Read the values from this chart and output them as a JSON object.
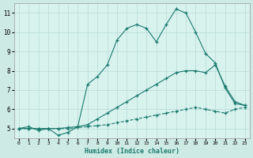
{
  "xlabel": "Humidex (Indice chaleur)",
  "background_color": "#ceeae4",
  "plot_bg_color": "#d8f2ee",
  "line_color": "#1a7a6e",
  "grid_color": "#b8dcd8",
  "xlim": [
    -0.5,
    23.5
  ],
  "ylim": [
    4.5,
    11.5
  ],
  "yticks": [
    5,
    6,
    7,
    8,
    9,
    10,
    11
  ],
  "xticks": [
    0,
    1,
    2,
    3,
    4,
    5,
    6,
    7,
    8,
    9,
    10,
    11,
    12,
    13,
    14,
    15,
    16,
    17,
    18,
    19,
    20,
    21,
    22,
    23
  ],
  "series": [
    {
      "x": [
        0,
        1,
        2,
        3,
        4,
        5,
        6,
        7,
        8,
        9,
        10,
        11,
        12,
        13,
        14,
        15,
        16,
        17,
        18,
        19,
        20,
        21,
        22,
        23
      ],
      "y": [
        5.0,
        5.1,
        4.9,
        5.0,
        4.65,
        4.8,
        5.1,
        7.3,
        7.7,
        8.3,
        9.6,
        10.2,
        10.4,
        10.2,
        9.5,
        10.4,
        11.2,
        11.0,
        10.0,
        8.9,
        8.4,
        7.1,
        6.3,
        6.2
      ],
      "linestyle": "-"
    },
    {
      "x": [
        0,
        1,
        2,
        3,
        4,
        5,
        6,
        7,
        8,
        9,
        10,
        11,
        12,
        13,
        14,
        15,
        16,
        17,
        18,
        19,
        20,
        21,
        22,
        23
      ],
      "y": [
        5.0,
        5.0,
        5.0,
        5.0,
        5.0,
        5.05,
        5.1,
        5.2,
        5.5,
        5.8,
        6.1,
        6.4,
        6.7,
        7.0,
        7.3,
        7.6,
        7.9,
        8.0,
        8.0,
        7.9,
        8.3,
        7.2,
        6.4,
        6.2
      ],
      "linestyle": "-"
    },
    {
      "x": [
        0,
        1,
        2,
        3,
        4,
        5,
        6,
        7,
        8,
        9,
        10,
        11,
        12,
        13,
        14,
        15,
        16,
        17,
        18,
        19,
        20,
        21,
        22,
        23
      ],
      "y": [
        5.0,
        5.0,
        5.0,
        5.0,
        5.0,
        5.0,
        5.05,
        5.1,
        5.15,
        5.2,
        5.3,
        5.4,
        5.5,
        5.6,
        5.7,
        5.8,
        5.9,
        6.0,
        6.1,
        6.0,
        5.9,
        5.8,
        6.0,
        6.1
      ],
      "linestyle": "--"
    }
  ]
}
